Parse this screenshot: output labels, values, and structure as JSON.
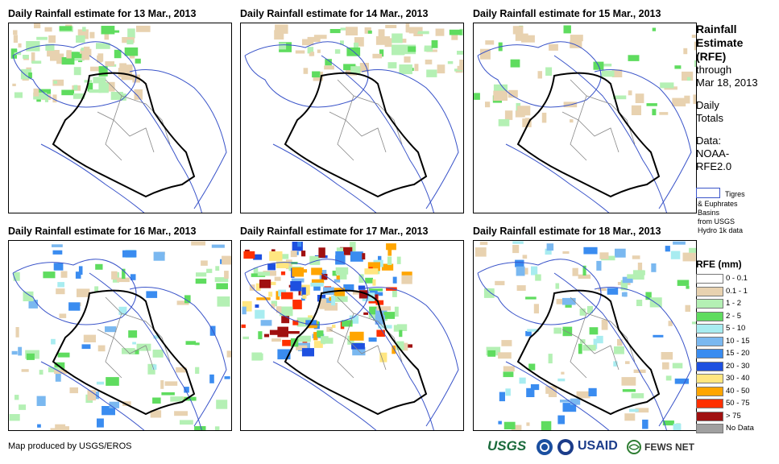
{
  "panels": [
    {
      "title": "Daily Rainfall estimate for 13 Mar., 2013"
    },
    {
      "title": "Daily Rainfall estimate for 14 Mar., 2013"
    },
    {
      "title": "Daily Rainfall estimate for 15 Mar., 2013"
    },
    {
      "title": "Daily Rainfall estimate for 16 Mar., 2013"
    },
    {
      "title": "Daily Rainfall estimate for 17 Mar., 2013"
    },
    {
      "title": "Daily Rainfall estimate for 18 Mar., 2013"
    }
  ],
  "sidebar": {
    "title_line1": "Rainfall",
    "title_line2": "Estimate",
    "title_line3": "(RFE)",
    "through_line1": "through",
    "through_line2": "Mar 18, 2013",
    "daily_line1": "Daily",
    "daily_line2": "Totals",
    "data_line1": "Data:",
    "data_line2": "NOAA-",
    "data_line3": "RFE2.0"
  },
  "basin_key": {
    "line1": "Tigres",
    "line2": "& Euphrates",
    "line3": "Basins",
    "line4": "from USGS",
    "line5": "Hydro 1k data",
    "color": "#3a54c9"
  },
  "legend": {
    "title": "RFE (mm)",
    "items": [
      {
        "label": "0 - 0.1",
        "color": "#ffffff"
      },
      {
        "label": "0.1 - 1",
        "color": "#e8d2b0"
      },
      {
        "label": "1 - 2",
        "color": "#b4f0b4"
      },
      {
        "label": "2 - 5",
        "color": "#5fdc5f"
      },
      {
        "label": "5 - 10",
        "color": "#a8ecf0"
      },
      {
        "label": "10 - 15",
        "color": "#7ab8f0"
      },
      {
        "label": "15 - 20",
        "color": "#3a8cf0"
      },
      {
        "label": "20 - 30",
        "color": "#1e50e0"
      },
      {
        "label": "30 - 40",
        "color": "#ffe680"
      },
      {
        "label": "40 - 50",
        "color": "#ffa500"
      },
      {
        "label": "50 - 75",
        "color": "#ff3000"
      },
      {
        "label": "> 75",
        "color": "#a01010"
      },
      {
        "label": "No Data",
        "color": "#a0a0a0"
      }
    ]
  },
  "footer": {
    "credit": "Map produced by USGS/EROS",
    "logo_usgs": "USGS",
    "logo_usaid": "USAID",
    "logo_fews": "FEWS NET"
  }
}
